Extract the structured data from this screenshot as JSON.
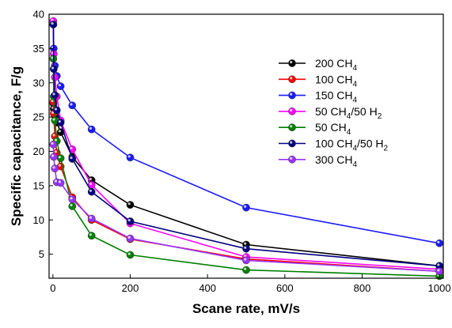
{
  "chart_data": {
    "type": "line",
    "title": "",
    "xlabel": "Scane rate, mV/s",
    "ylabel": "Specific capacitance, F/g",
    "xlim": [
      -10,
      1010
    ],
    "ylim": [
      1.5,
      40
    ],
    "xticks": [
      0,
      200,
      400,
      600,
      800,
      1000
    ],
    "yticks": [
      5,
      10,
      15,
      20,
      25,
      30,
      35,
      40
    ],
    "grid": false,
    "legend_position": "upper-right-inside",
    "series": [
      {
        "name": "200 CH",
        "sub": "4",
        "color": "#000000",
        "x": [
          1,
          2,
          5,
          10,
          20,
          50,
          100,
          200,
          500,
          1000
        ],
        "y": [
          27,
          26.2,
          25.2,
          24.2,
          22.8,
          19.2,
          15.8,
          12.2,
          6.4,
          3.3
        ]
      },
      {
        "name": "100 CH",
        "sub": "4",
        "color": "#ff0000",
        "x": [
          1,
          2,
          5,
          10,
          20,
          50,
          100,
          200,
          500,
          1000
        ],
        "y": [
          27.2,
          25.5,
          22.2,
          19.8,
          17.8,
          13.3,
          10.0,
          7.2,
          4.3,
          2.5
        ]
      },
      {
        "name": "150 CH",
        "sub": "4",
        "color": "#1a1aff",
        "x": [
          1,
          2,
          5,
          10,
          20,
          50,
          100,
          200,
          500,
          1000
        ],
        "y": [
          38.5,
          35.0,
          32.5,
          31.0,
          29.5,
          26.7,
          23.2,
          19.1,
          11.8,
          6.6
        ]
      },
      {
        "name": "50 CH",
        "sub": "4",
        "name2": "/50 H",
        "sub2": "2",
        "color": "#ff00ff",
        "x": [
          1,
          2,
          5,
          10,
          20,
          50,
          100,
          200,
          500,
          1000
        ],
        "y": [
          39.0,
          34.2,
          30.8,
          28.0,
          24.5,
          20.3,
          15.1,
          9.5,
          4.6,
          2.8
        ]
      },
      {
        "name": "50 CH",
        "sub": "4",
        "color": "#008000",
        "x": [
          1,
          2,
          5,
          10,
          20,
          50,
          100,
          200,
          500,
          1000
        ],
        "y": [
          33.5,
          28.0,
          24.5,
          21.5,
          19.0,
          12.0,
          7.7,
          4.9,
          2.7,
          1.8
        ]
      },
      {
        "name": "100 CH",
        "sub": "4",
        "name2": "/50 H",
        "sub2": "2",
        "color": "#000080",
        "x": [
          1,
          2,
          5,
          10,
          20,
          50,
          100,
          200,
          500,
          1000
        ],
        "y": [
          38.5,
          32.0,
          28.2,
          26.0,
          24.2,
          18.9,
          14.1,
          9.8,
          5.8,
          3.3
        ]
      },
      {
        "name": "300 CH",
        "sub": "4",
        "color": "#9933ff",
        "x": [
          1,
          2,
          5,
          10,
          20,
          50,
          100,
          200,
          500,
          1000
        ],
        "y": [
          21.0,
          19.2,
          17.5,
          15.5,
          15.4,
          13.0,
          10.2,
          7.3,
          4.1,
          2.5
        ]
      }
    ]
  }
}
